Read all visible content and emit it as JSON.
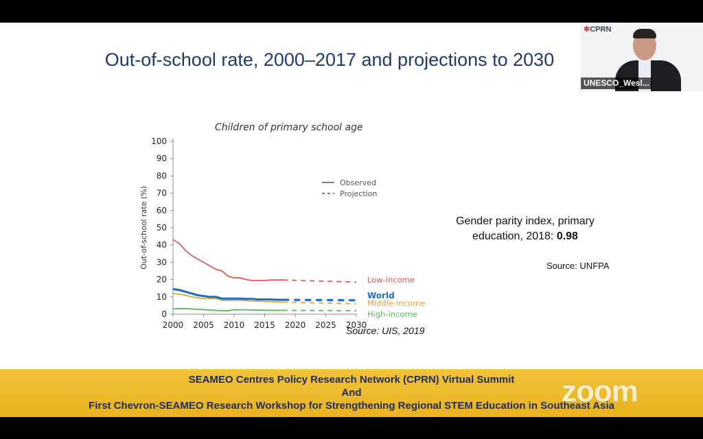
{
  "slide": {
    "title": "Out-of-school rate, 2000–2017 and projections to 2030",
    "gpi_text": "Gender parity index, primary education, 2018: ",
    "gpi_value": "0.98",
    "gpi_source": "Source: UNFPA",
    "chart_source": "Source: UIS, 2019"
  },
  "banner": {
    "line1": "SEAMEO Centres Policy Research Network (CPRN) Virtual Summit",
    "line2": "And",
    "line3": "First Chevron-SEAMEO Research Workshop for Strengthening Regional STEM Education in Southeast Asia",
    "logo": "zoom"
  },
  "video": {
    "logo": "CPRN",
    "name": "UNESCO_Wesl..."
  },
  "chart_data": {
    "type": "line",
    "title": "Children of primary school age",
    "ylabel": "Out-of-school rate (%)",
    "xlabel": "",
    "xlim": [
      2000,
      2030
    ],
    "ylim": [
      0,
      100
    ],
    "xticks": [
      2000,
      2005,
      2010,
      2015,
      2020,
      2025,
      2030
    ],
    "yticks": [
      0,
      10,
      20,
      30,
      40,
      50,
      60,
      70,
      80,
      90,
      100
    ],
    "legend": [
      "Observed",
      "Projection"
    ],
    "legend_position": "top-right",
    "series": [
      {
        "name": "Low-income",
        "color": "#e05a5a",
        "observed": [
          [
            2000,
            43
          ],
          [
            2001,
            41
          ],
          [
            2002,
            37
          ],
          [
            2003,
            34
          ],
          [
            2004,
            32
          ],
          [
            2005,
            30
          ],
          [
            2006,
            28
          ],
          [
            2007,
            26
          ],
          [
            2008,
            25
          ],
          [
            2009,
            22
          ],
          [
            2010,
            21
          ],
          [
            2011,
            21
          ],
          [
            2012,
            20
          ],
          [
            2013,
            19.5
          ],
          [
            2014,
            19.5
          ],
          [
            2015,
            19.5
          ],
          [
            2016,
            19.8
          ],
          [
            2017,
            19.8
          ],
          [
            2018,
            19.8
          ]
        ],
        "projection": [
          [
            2018,
            19.8
          ],
          [
            2030,
            18.5
          ]
        ]
      },
      {
        "name": "World",
        "color": "#1f6fc5",
        "observed": [
          [
            2000,
            14.5
          ],
          [
            2001,
            14
          ],
          [
            2002,
            13
          ],
          [
            2003,
            12
          ],
          [
            2004,
            11
          ],
          [
            2005,
            10.5
          ],
          [
            2006,
            10
          ],
          [
            2007,
            10
          ],
          [
            2008,
            9
          ],
          [
            2009,
            9
          ],
          [
            2010,
            9
          ],
          [
            2011,
            9
          ],
          [
            2012,
            8.8
          ],
          [
            2013,
            8.8
          ],
          [
            2014,
            8.5
          ],
          [
            2015,
            8.5
          ],
          [
            2016,
            8.5
          ],
          [
            2017,
            8.3
          ],
          [
            2018,
            8.3
          ]
        ],
        "projection": [
          [
            2018,
            8.3
          ],
          [
            2030,
            8
          ]
        ]
      },
      {
        "name": "Middle-income",
        "color": "#e2a33b",
        "observed": [
          [
            2000,
            12
          ],
          [
            2001,
            11.5
          ],
          [
            2002,
            11
          ],
          [
            2003,
            10
          ],
          [
            2004,
            9.5
          ],
          [
            2005,
            9
          ],
          [
            2006,
            9
          ],
          [
            2007,
            9
          ],
          [
            2008,
            8
          ],
          [
            2009,
            8
          ],
          [
            2010,
            8
          ],
          [
            2011,
            8
          ],
          [
            2012,
            7.8
          ],
          [
            2013,
            7.6
          ],
          [
            2014,
            7.5
          ],
          [
            2015,
            7.3
          ],
          [
            2016,
            7.2
          ],
          [
            2017,
            7
          ],
          [
            2018,
            7
          ]
        ],
        "projection": [
          [
            2018,
            7
          ],
          [
            2030,
            6
          ]
        ]
      },
      {
        "name": "High-income",
        "color": "#5cb85c",
        "observed": [
          [
            2000,
            3
          ],
          [
            2001,
            3.2
          ],
          [
            2002,
            3.2
          ],
          [
            2003,
            3
          ],
          [
            2004,
            2.8
          ],
          [
            2005,
            2.6
          ],
          [
            2006,
            2.4
          ],
          [
            2007,
            2.2
          ],
          [
            2008,
            2
          ],
          [
            2009,
            2
          ],
          [
            2010,
            2.5
          ],
          [
            2011,
            2.5
          ],
          [
            2012,
            2.5
          ],
          [
            2013,
            2.4
          ],
          [
            2014,
            2.3
          ],
          [
            2015,
            2.3
          ],
          [
            2016,
            2.2
          ],
          [
            2017,
            2.2
          ],
          [
            2018,
            2.2
          ]
        ],
        "projection": [
          [
            2018,
            2.2
          ],
          [
            2030,
            2
          ]
        ]
      }
    ]
  },
  "colors": {
    "title": "#1f3a6b",
    "banner": "#f1c33a",
    "banner_text": "#1d2a5c"
  }
}
